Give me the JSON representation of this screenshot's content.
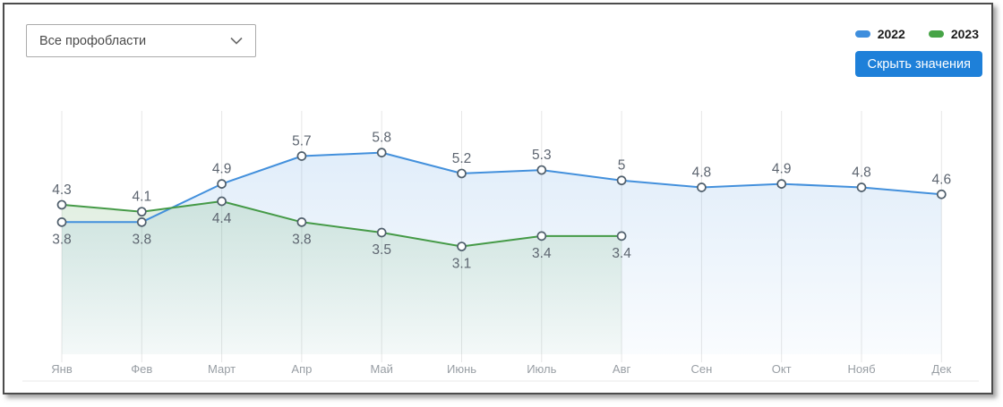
{
  "filter": {
    "value": "Все профобласти"
  },
  "legend": [
    {
      "label": "2022",
      "color": "#3e8edd"
    },
    {
      "label": "2023",
      "color": "#47a447"
    }
  ],
  "toolbar": {
    "hide_values_label": "Скрыть значения",
    "button_color": "#1e80d9"
  },
  "chart_data": {
    "type": "line",
    "categories": [
      "Янв",
      "Фев",
      "Март",
      "Апр",
      "Май",
      "Июнь",
      "Июль",
      "Авг",
      "Сен",
      "Окт",
      "Нояб",
      "Дек"
    ],
    "series": [
      {
        "name": "2022",
        "color": "#4390dc",
        "values": [
          3.8,
          3.8,
          4.9,
          5.7,
          5.8,
          5.2,
          5.3,
          5,
          4.8,
          4.9,
          4.8,
          4.6
        ]
      },
      {
        "name": "2023",
        "color": "#459a47",
        "values": [
          4.3,
          4.1,
          4.4,
          3.8,
          3.5,
          3.1,
          3.4,
          3.4,
          null,
          null,
          null,
          null
        ]
      }
    ],
    "ylim": [
      0,
      7
    ],
    "grid": "vertical-only",
    "area": true,
    "data_labels": true,
    "legend_position": "top-right",
    "colors": {
      "grid_line": "#e7e7e7",
      "value_label": "#5d6570",
      "month_label": "#989ea4",
      "marker_stroke": "#4f5e6b",
      "baseline": "#e9e9e9"
    }
  }
}
